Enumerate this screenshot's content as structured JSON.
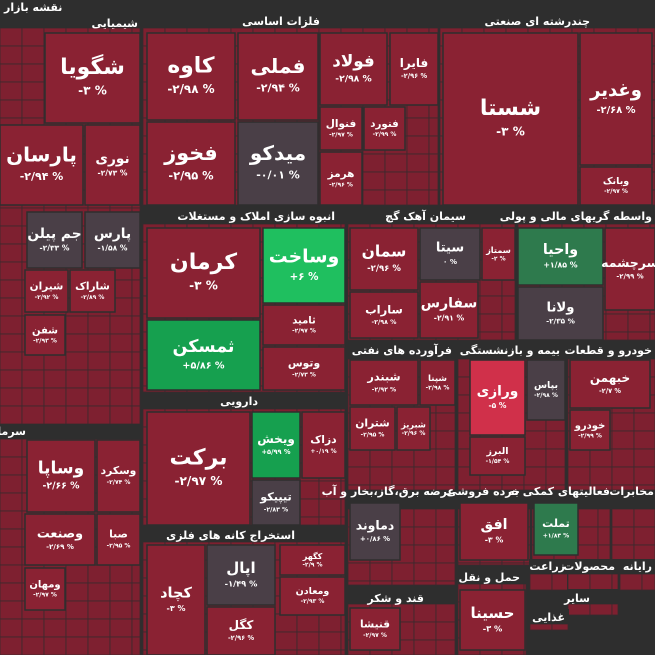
{
  "title": "نقشه بازار",
  "sectors": [
    {
      "name": "شیمیایی",
      "tiles": [
        {
          "symbol": "شگویا",
          "change": "-۳ %"
        },
        {
          "symbol": "پارسان",
          "change": "-۲/۹۴ %"
        },
        {
          "symbol": "نوری",
          "change": "-۲/۷۳ %"
        },
        {
          "symbol": "جم پیلن",
          "change": "-۲/۳۳ %"
        },
        {
          "symbol": "پارس",
          "change": "-۱/۵۸ %"
        },
        {
          "symbol": "شیران",
          "change": "-۲/۹۲ %"
        },
        {
          "symbol": "شاراک",
          "change": "-۲/۸۹ %"
        },
        {
          "symbol": "شفن",
          "change": "-۲/۹۳ %"
        }
      ]
    },
    {
      "name": "سرمایه گذا",
      "tiles": [
        {
          "symbol": "وساپا",
          "change": "-۲/۶۶ %"
        },
        {
          "symbol": "وسکرد",
          "change": "-۲/۷۴ %"
        },
        {
          "symbol": "وصنعت",
          "change": "-۲/۶۹ %"
        },
        {
          "symbol": "صبا",
          "change": "-۲/۹۵ %"
        },
        {
          "symbol": "ومهان",
          "change": "-۲/۹۷ %"
        }
      ]
    },
    {
      "name": "فلزات اساسی",
      "tiles": [
        {
          "symbol": "کاوه",
          "change": "-۲/۹۸ %"
        },
        {
          "symbol": "فملی",
          "change": "-۲/۹۴ %"
        },
        {
          "symbol": "فولاد",
          "change": "-۲/۹۸ %"
        },
        {
          "symbol": "فایرا",
          "change": "-۲/۹۶ %"
        },
        {
          "symbol": "فخوز",
          "change": "-۲/۹۵ %"
        },
        {
          "symbol": "میدکو",
          "change": "-۰/۰۱ %"
        },
        {
          "symbol": "فنوال",
          "change": "-۲/۹۷ %"
        },
        {
          "symbol": "فنورد",
          "change": "-۲/۹۹ %"
        },
        {
          "symbol": "هرمز",
          "change": "-۲/۹۶ %"
        }
      ]
    },
    {
      "name": "چندرشته ای صنعتی",
      "tiles": [
        {
          "symbol": "شستا",
          "change": "-۳ %"
        },
        {
          "symbol": "وغدیر",
          "change": "-۲/۶۸ %"
        },
        {
          "symbol": "وبانک",
          "change": "-۲/۹۷ %"
        }
      ]
    },
    {
      "name": "انبوه سازی املاک و مستغلات",
      "tiles": [
        {
          "symbol": "کرمان",
          "change": "-۳ %"
        },
        {
          "symbol": "وساخت",
          "change": "+۶ %"
        },
        {
          "symbol": "ثامید",
          "change": "-۲/۹۷ %"
        },
        {
          "symbol": "ثمسکن",
          "change": "+۵/۸۶ %"
        },
        {
          "symbol": "وتوس",
          "change": "-۲/۷۳ %"
        }
      ]
    },
    {
      "name": "سیمان آهک گچ",
      "tiles": [
        {
          "symbol": "سیتا",
          "change": "۰ %"
        },
        {
          "symbol": "سمتاز",
          "change": "-۲ %"
        },
        {
          "symbol": "سمان",
          "change": "-۲/۹۶ %"
        },
        {
          "symbol": "ساراب",
          "change": "-۲/۹۸ %"
        },
        {
          "symbol": "سفارس",
          "change": "-۲/۹۱ %"
        }
      ]
    },
    {
      "name": "واسطه گریهای مالی و پولی",
      "tiles": [
        {
          "symbol": "واحیا",
          "change": "+۱/۸۵ %"
        },
        {
          "symbol": "سرچشمه",
          "change": "-۲/۹۹ %"
        },
        {
          "symbol": "ولانا",
          "change": "-۲/۳۵ %"
        }
      ]
    },
    {
      "name": "دارویی",
      "tiles": [
        {
          "symbol": "برکت",
          "change": "-۲/۹۷ %"
        },
        {
          "symbol": "ویخش",
          "change": "+۵/۹۹ %"
        },
        {
          "symbol": "دزاک",
          "change": "+۰/۱۹ %"
        },
        {
          "symbol": "تیپیکو",
          "change": "-۲/۸۳ %"
        }
      ]
    },
    {
      "name": "استخراج کانه های فلزی",
      "tiles": [
        {
          "symbol": "کچاد",
          "change": "-۳ %"
        },
        {
          "symbol": "اپال",
          "change": "-۱/۴۹ %"
        },
        {
          "symbol": "کگل",
          "change": "-۲/۹۶ %"
        },
        {
          "symbol": "کگهر",
          "change": "-۲/۹ %"
        },
        {
          "symbol": "ومعادن",
          "change": "-۲/۹۳ %"
        }
      ]
    },
    {
      "name": "فرآورده های نفتی",
      "tiles": [
        {
          "symbol": "شبندر",
          "change": "-۲/۹۲ %"
        },
        {
          "symbol": "شپنا",
          "change": "-۲/۹۸ %"
        },
        {
          "symbol": "شتران",
          "change": "-۲/۹۵ %"
        },
        {
          "symbol": "شبریز",
          "change": "-۲/۹۶ %"
        }
      ]
    },
    {
      "name": "بیمه و بازنشستگی",
      "tiles": [
        {
          "symbol": "ورازی",
          "change": "-۵ %"
        },
        {
          "symbol": "بپاس",
          "change": "-۲/۹۸ %"
        },
        {
          "symbol": "البرز",
          "change": "-۱/۵۴ %"
        }
      ]
    },
    {
      "name": "خودرو و قطعات",
      "tiles": [
        {
          "symbol": "خبهمن",
          "change": "-۲/۷ %"
        },
        {
          "symbol": "خودرو",
          "change": "-۲/۹۹ %"
        }
      ]
    },
    {
      "name": "عرضه برق،گاز،بخار و آب",
      "tiles": [
        {
          "symbol": "دماوند",
          "change": "+۰/۸۶ %"
        }
      ]
    },
    {
      "name": "خرده فروشی",
      "tiles": [
        {
          "symbol": "افق",
          "change": "-۳ %"
        }
      ]
    },
    {
      "name": "فعالیتهای کمکی به",
      "tiles": [
        {
          "symbol": "تملت",
          "change": "+۱/۸۳ %"
        }
      ]
    },
    {
      "name": "مخابرات",
      "tiles": []
    },
    {
      "name": "حمل و نقل",
      "tiles": [
        {
          "symbol": "حسینا",
          "change": "-۳ %"
        }
      ]
    },
    {
      "name": "قند و شکر",
      "tiles": [
        {
          "symbol": "قنیشا",
          "change": "-۲/۹۷ %"
        }
      ]
    },
    {
      "name": "زراعت",
      "tiles": []
    },
    {
      "name": "محصولات",
      "tiles": []
    },
    {
      "name": "رایانه",
      "tiles": []
    },
    {
      "name": "سایر",
      "tiles": []
    },
    {
      "name": "غذایی",
      "tiles": []
    }
  ]
}
